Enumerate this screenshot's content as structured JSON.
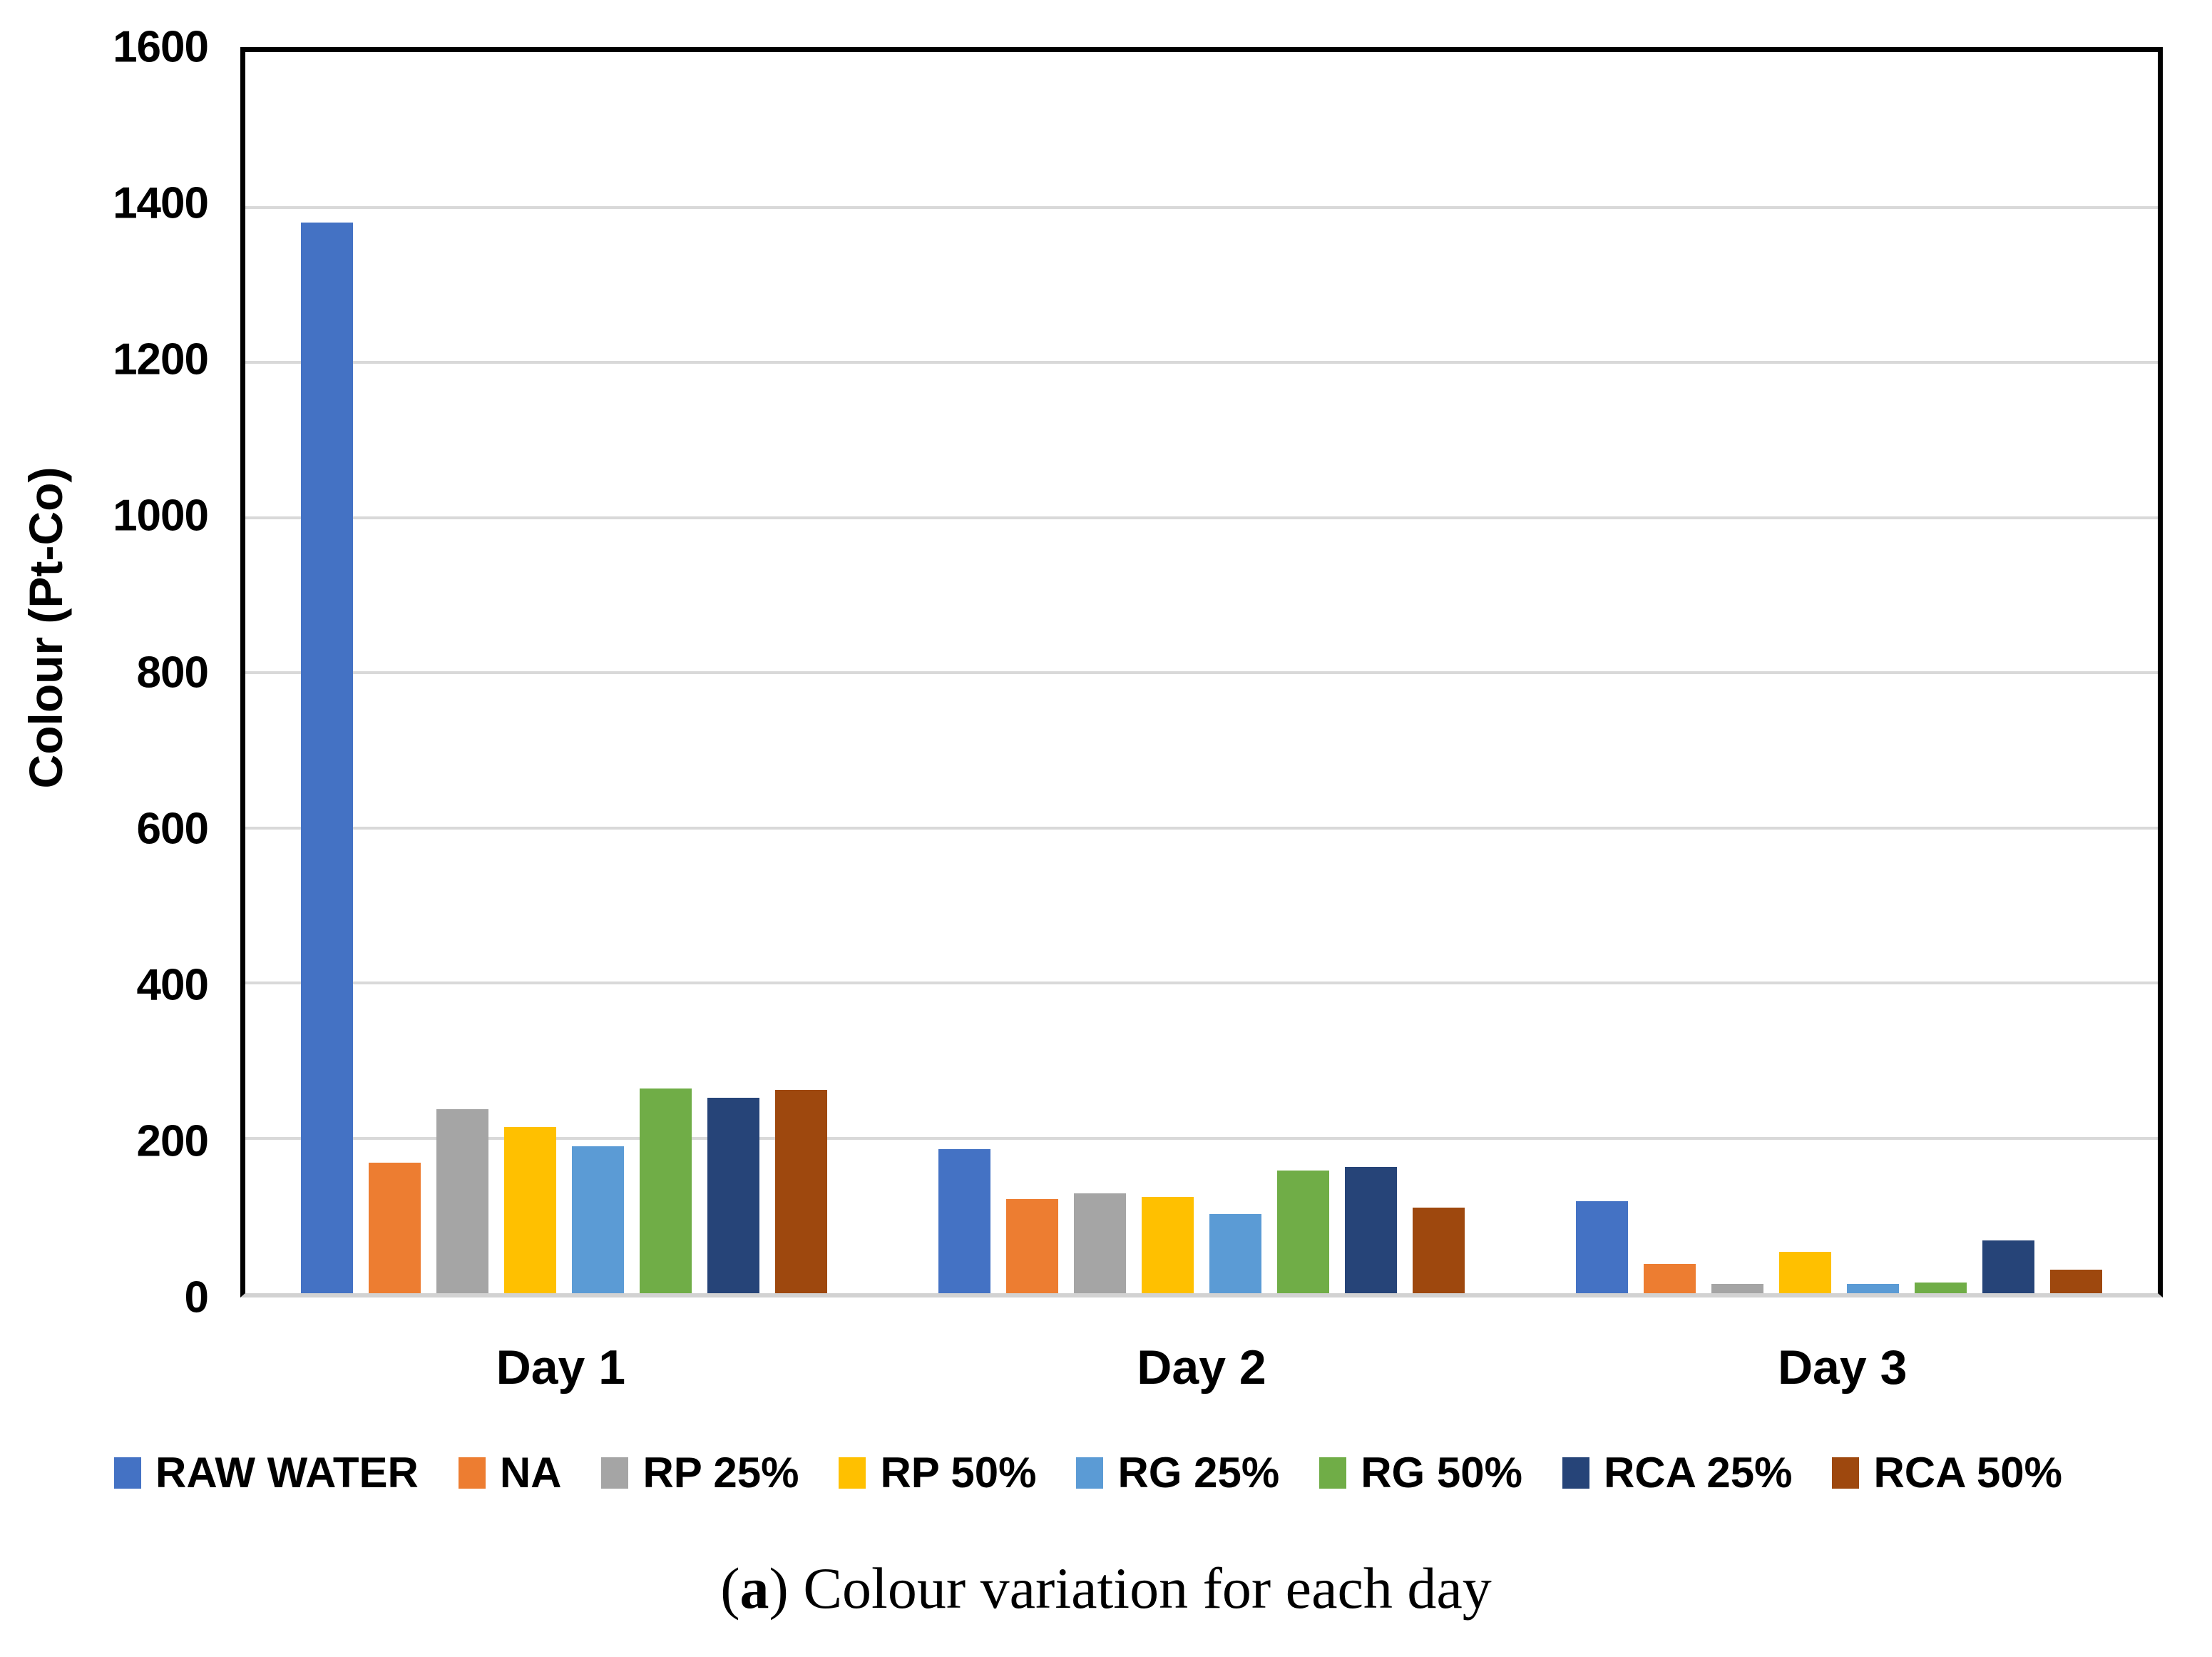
{
  "figure": {
    "caption": {
      "open": "(",
      "marker": "a",
      "rest": ") Colour variation for each day"
    }
  },
  "colors": {
    "axis": "#000000",
    "gridline": "#d9d9d9",
    "baseline": "#d2d2d2",
    "background": "#ffffff"
  },
  "chart_data": {
    "type": "bar",
    "title": "",
    "xlabel": "",
    "ylabel": "Colour (Pt-Co)",
    "ylim": [
      0,
      1600
    ],
    "ytick_interval": 200,
    "yticks": [
      1600,
      1400,
      1200,
      1000,
      800,
      600,
      400,
      200,
      0
    ],
    "grid": true,
    "legend_position": "bottom",
    "categories": [
      "Day 1",
      "Day 2",
      "Day 3"
    ],
    "series": [
      {
        "name": "RAW WATER",
        "color": "#4472C4",
        "values": [
          1380,
          186,
          119
        ]
      },
      {
        "name": "NA",
        "color": "#ED7D31",
        "values": [
          168,
          121,
          38
        ]
      },
      {
        "name": "RP 25%",
        "color": "#A5A5A5",
        "values": [
          237,
          129,
          12
        ]
      },
      {
        "name": "RP 50%",
        "color": "#FFC000",
        "values": [
          214,
          124,
          53
        ]
      },
      {
        "name": "RG 25%",
        "color": "#5B9BD5",
        "values": [
          189,
          102,
          12
        ]
      },
      {
        "name": "RG 50%",
        "color": "#70AD47",
        "values": [
          264,
          158,
          14
        ]
      },
      {
        "name": "RCA 25%",
        "color": "#264478",
        "values": [
          252,
          163,
          68
        ]
      },
      {
        "name": "RCA 50%",
        "color": "#9E480E",
        "values": [
          262,
          110,
          30
        ]
      }
    ]
  }
}
